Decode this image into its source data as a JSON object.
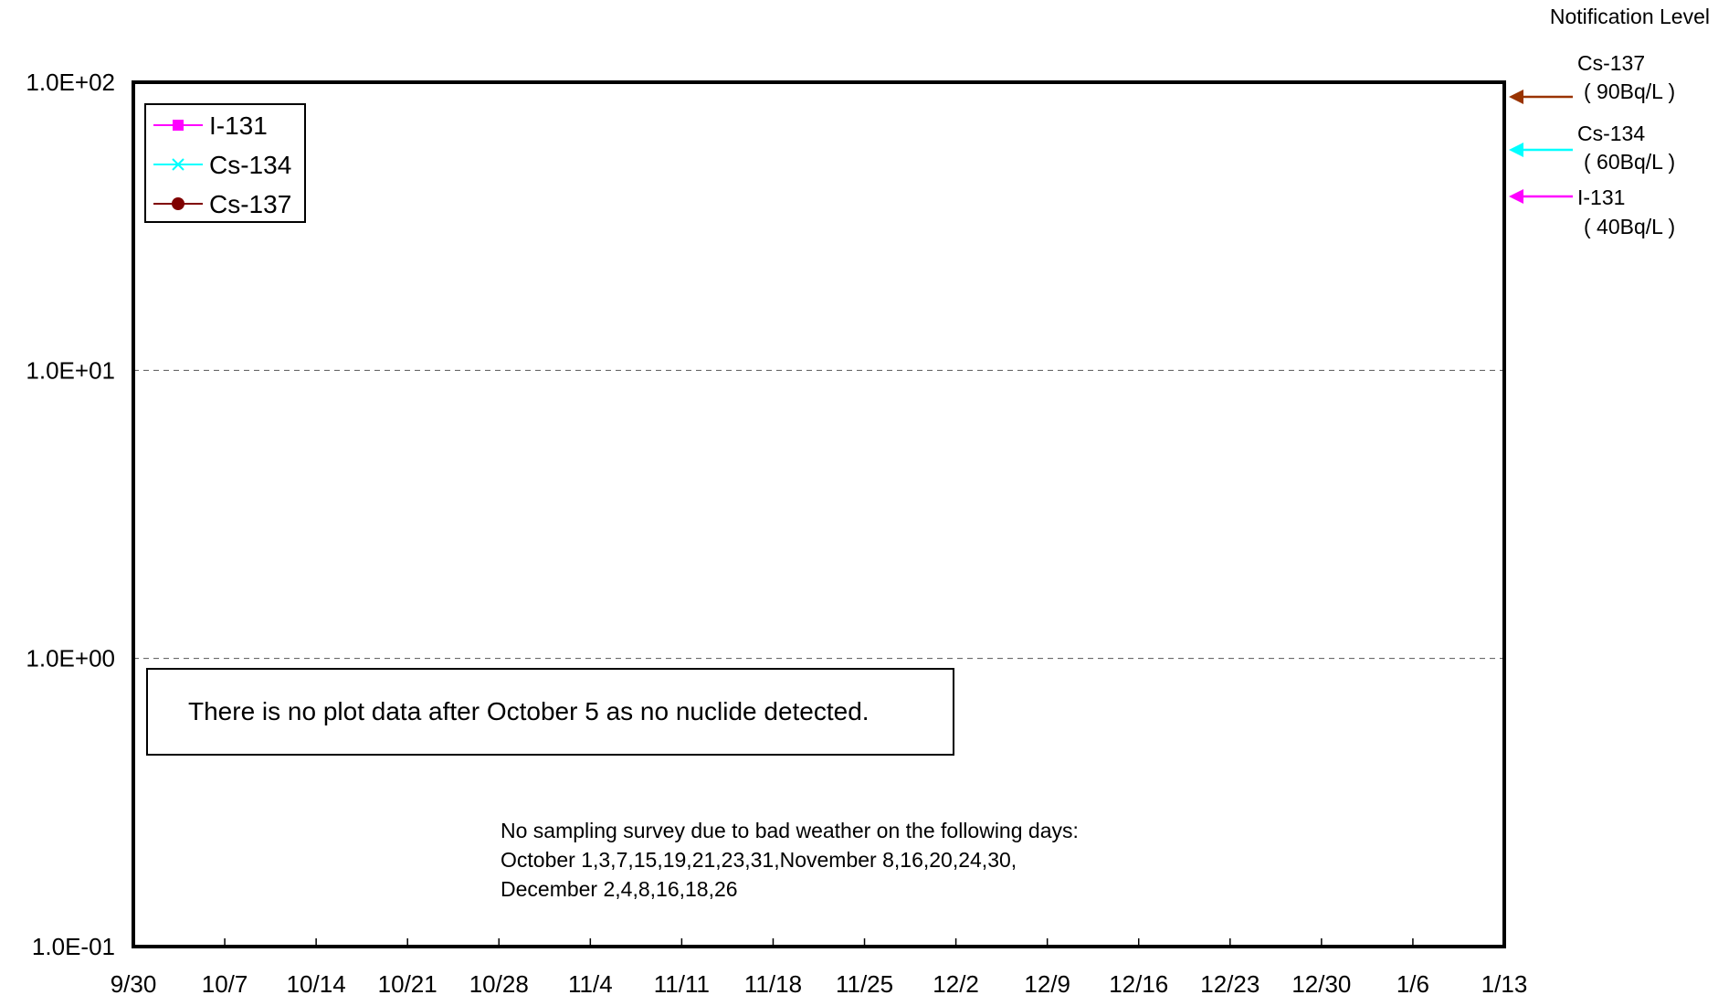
{
  "chart_data": {
    "type": "line",
    "x_tick_labels": [
      "9/30",
      "10/7",
      "10/14",
      "10/21",
      "10/28",
      "11/4",
      "11/11",
      "11/18",
      "11/25",
      "12/2",
      "12/9",
      "12/16",
      "12/23",
      "12/30",
      "1/6",
      "1/13"
    ],
    "y_scale": "log",
    "ylim": [
      0.1,
      100
    ],
    "y_ticks": [
      {
        "value": 100,
        "label": "1.0E+02"
      },
      {
        "value": 10,
        "label": "1.0E+01"
      },
      {
        "value": 1,
        "label": "1.0E+00"
      },
      {
        "value": 0.1,
        "label": "1.0E-01"
      }
    ],
    "grid": "horizontal dashed at major y ticks",
    "legend_position": "top-left",
    "series": [
      {
        "name": "I-131",
        "color": "#ff00ff",
        "marker": "square",
        "values": []
      },
      {
        "name": "Cs-134",
        "color": "#00ffff",
        "marker": "x",
        "values": []
      },
      {
        "name": "Cs-137",
        "color": "#800000",
        "marker": "circle",
        "values": []
      }
    ],
    "note": "There is no plot data after October 5 as no nuclide detected.",
    "weather_note": [
      "No sampling survey due to bad weather on the following days:",
      "October 1,3,7,15,19,21,23,31,November 8,16,20,24,30,",
      "December 2,4,8,16,18,26"
    ],
    "notification": {
      "title": "Notification Level",
      "levels": [
        {
          "name": "Cs-137",
          "label": "( 90Bq/L )",
          "value": 90,
          "color": "#993300"
        },
        {
          "name": "Cs-134",
          "label": "( 60Bq/L )",
          "value": 60,
          "color": "#00ffff"
        },
        {
          "name": "I-131",
          "label": "( 40Bq/L )",
          "value": 40,
          "color": "#ff00ff"
        }
      ]
    }
  }
}
